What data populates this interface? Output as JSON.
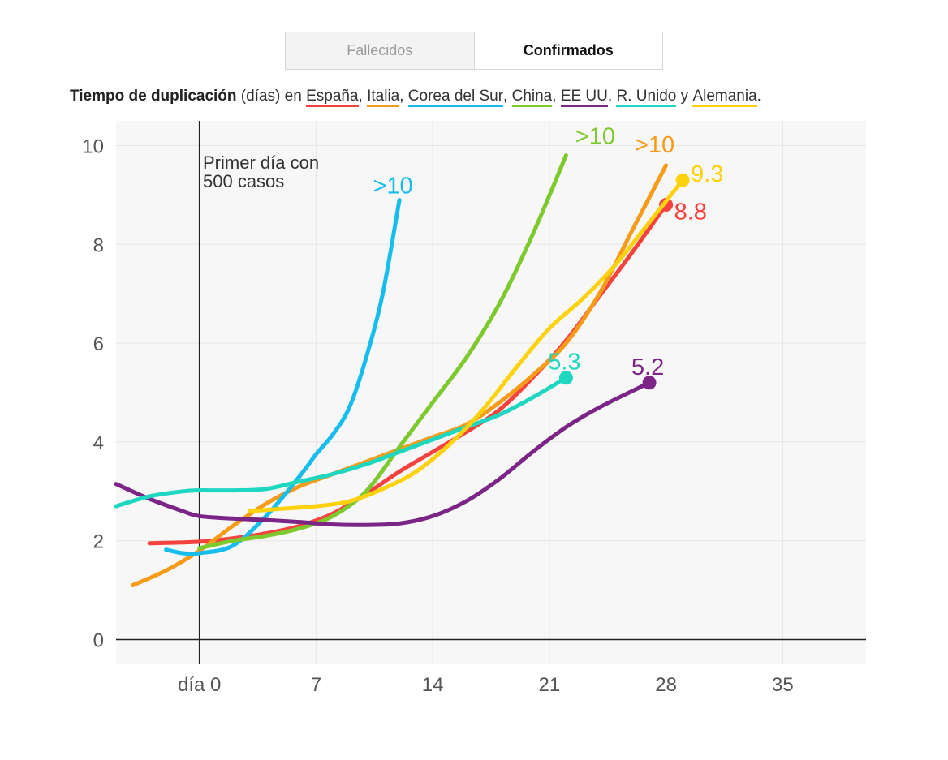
{
  "toggle": {
    "options": [
      {
        "label": "Fallecidos",
        "active": false
      },
      {
        "label": "Confirmados",
        "active": true
      }
    ]
  },
  "subtitle": {
    "bold": "Tiempo de duplicación",
    "units": "(días)",
    "en": "en",
    "sep": ",",
    "and": "y",
    "end": ".",
    "countries": [
      {
        "name": "España",
        "color": "#f4423f"
      },
      {
        "name": "Italia",
        "color": "#f59c1a"
      },
      {
        "name": "Corea del Sur",
        "color": "#17bdec"
      },
      {
        "name": "China",
        "color": "#7ec92e"
      },
      {
        "name": "EE UU",
        "color": "#7b2587"
      },
      {
        "name": "R. Unido",
        "color": "#1fd6c0"
      },
      {
        "name": "Alemania",
        "color": "#fcd20e"
      }
    ]
  },
  "annotation": {
    "line1": "Primer día con",
    "line2": "500 casos"
  },
  "chart_data": {
    "type": "line",
    "xlim": [
      -5,
      40
    ],
    "ylim": [
      -0.5,
      10.5
    ],
    "x_ticks": [
      {
        "value": 0,
        "label": "día 0"
      },
      {
        "value": 7,
        "label": "7"
      },
      {
        "value": 14,
        "label": "14"
      },
      {
        "value": 21,
        "label": "21"
      },
      {
        "value": 28,
        "label": "28"
      },
      {
        "value": 35,
        "label": "35"
      }
    ],
    "y_ticks": [
      0,
      2,
      4,
      6,
      8,
      10
    ],
    "grid": true,
    "series": [
      {
        "name": "España",
        "color": "#f4423f",
        "end_label": "8.8",
        "end_marker": true,
        "x": [
          -3,
          0,
          2,
          4,
          6,
          8,
          10,
          12,
          14,
          16,
          18,
          20,
          22,
          24,
          26,
          28
        ],
        "y": [
          1.95,
          1.98,
          2.05,
          2.15,
          2.3,
          2.55,
          2.95,
          3.4,
          3.8,
          4.2,
          4.65,
          5.3,
          6.05,
          6.95,
          7.85,
          8.8
        ]
      },
      {
        "name": "Italia",
        "color": "#f59c1a",
        "end_label": ">10",
        "end_marker": false,
        "x": [
          -4,
          -2,
          0,
          2,
          4,
          6,
          8,
          10,
          12,
          14,
          16,
          18,
          20,
          22,
          24,
          26,
          28
        ],
        "y": [
          1.1,
          1.4,
          1.8,
          2.3,
          2.75,
          3.1,
          3.35,
          3.6,
          3.85,
          4.1,
          4.35,
          4.8,
          5.35,
          6.0,
          7.0,
          8.3,
          9.6
        ]
      },
      {
        "name": "Corea del Sur",
        "color": "#17bdec",
        "end_label": ">10",
        "end_marker": false,
        "x": [
          -2,
          -1,
          0,
          2,
          4,
          6,
          7,
          8,
          9,
          10,
          11,
          12
        ],
        "y": [
          1.82,
          1.75,
          1.75,
          1.9,
          2.5,
          3.3,
          3.75,
          4.15,
          4.7,
          5.7,
          7.0,
          8.9
        ]
      },
      {
        "name": "China",
        "color": "#7ec92e",
        "end_label": ">10",
        "end_marker": false,
        "x": [
          0,
          2,
          4,
          6,
          8,
          10,
          12,
          14,
          16,
          18,
          20,
          22
        ],
        "y": [
          1.85,
          2.0,
          2.1,
          2.25,
          2.5,
          3.0,
          3.9,
          4.8,
          5.7,
          6.8,
          8.2,
          9.8
        ]
      },
      {
        "name": "EE UU",
        "color": "#7b2587",
        "end_label": "5.2",
        "end_marker": true,
        "x": [
          -5,
          -3,
          -1,
          0,
          2,
          4,
          6,
          8,
          10,
          12,
          14,
          16,
          18,
          20,
          22,
          24,
          27
        ],
        "y": [
          3.15,
          2.85,
          2.6,
          2.5,
          2.45,
          2.42,
          2.38,
          2.33,
          2.32,
          2.35,
          2.5,
          2.8,
          3.25,
          3.8,
          4.3,
          4.7,
          5.2
        ]
      },
      {
        "name": "R. Unido",
        "color": "#1fd6c0",
        "end_label": "5.3",
        "end_marker": true,
        "x": [
          -5,
          -3,
          -1,
          0,
          2,
          4,
          6,
          8,
          10,
          12,
          14,
          16,
          18,
          20,
          22
        ],
        "y": [
          2.7,
          2.9,
          3.0,
          3.02,
          3.02,
          3.05,
          3.2,
          3.35,
          3.55,
          3.8,
          4.05,
          4.3,
          4.55,
          4.9,
          5.3
        ]
      },
      {
        "name": "Alemania",
        "color": "#fcd20e",
        "end_label": "9.3",
        "end_marker": true,
        "x": [
          3,
          5,
          7,
          9,
          11,
          13,
          15,
          17,
          19,
          21,
          23,
          25,
          27,
          29
        ],
        "y": [
          2.6,
          2.65,
          2.7,
          2.8,
          3.05,
          3.4,
          3.95,
          4.65,
          5.5,
          6.3,
          6.9,
          7.6,
          8.45,
          9.3
        ]
      }
    ]
  }
}
